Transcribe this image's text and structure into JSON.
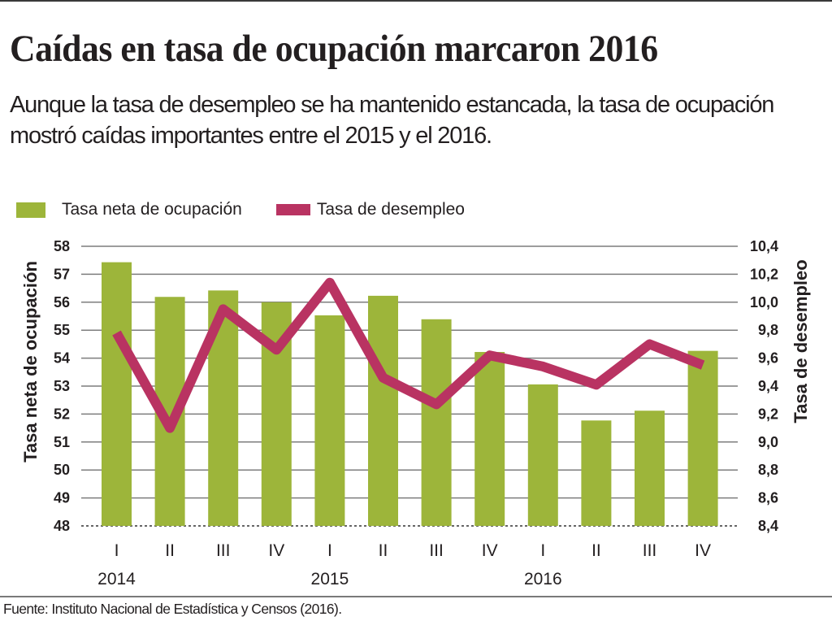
{
  "header": {
    "title": "Caídas en tasa de ocupación marcaron 2016",
    "subtitle": "Aunque la tasa de desempleo se ha mantenido estancada, la tasa de ocupación mostró caídas importantes entre el 2015 y el 2016."
  },
  "colors": {
    "bars": "#9db53a",
    "line": "#b93362",
    "grid": "#7d7d7d",
    "text": "#231f20"
  },
  "legend": [
    {
      "label": "Tasa neta de ocupación",
      "kind": "bar"
    },
    {
      "label": "Tasa de desempleo",
      "kind": "line"
    }
  ],
  "footer": {
    "source": "Fuente: Instituto Nacional de Estadística y Censos (2016)."
  },
  "chart_data": {
    "type": "bar",
    "title": "Caídas en tasa de ocupación marcaron 2016",
    "categories": [
      "I",
      "II",
      "III",
      "IV",
      "I",
      "II",
      "III",
      "IV",
      "I",
      "II",
      "III",
      "IV"
    ],
    "year_labels": [
      {
        "label": "2014",
        "category_index": 0
      },
      {
        "label": "2015",
        "category_index": 4
      },
      {
        "label": "2016",
        "category_index": 8
      }
    ],
    "xlabel": "",
    "ylabel": "Tasa neta de ocupación",
    "ylabel_right": "Tasa de desempleo",
    "ylim": [
      48,
      58
    ],
    "ylim_right": [
      8.4,
      10.4
    ],
    "yticks": [
      "58",
      "57",
      "56",
      "55",
      "54",
      "53",
      "52",
      "51",
      "50",
      "49",
      "48"
    ],
    "yticks_right": [
      "10,4",
      "10,2",
      "10,0",
      "9,8",
      "9,6",
      "9,4",
      "9,2",
      "9,0",
      "8,8",
      "8,6",
      "8,4"
    ],
    "grid": true,
    "legend_position": "top-left",
    "series": [
      {
        "name": "Tasa neta de ocupación",
        "type": "bar",
        "axis": "left",
        "values": [
          57.43,
          56.19,
          56.42,
          56.0,
          55.53,
          56.23,
          55.39,
          54.22,
          53.06,
          51.77,
          52.12,
          54.26
        ]
      },
      {
        "name": "Tasa de desempleo",
        "type": "line",
        "axis": "right",
        "values": [
          9.78,
          9.1,
          9.95,
          9.66,
          10.14,
          9.46,
          9.27,
          9.62,
          9.54,
          9.41,
          9.7,
          9.55
        ]
      }
    ]
  }
}
